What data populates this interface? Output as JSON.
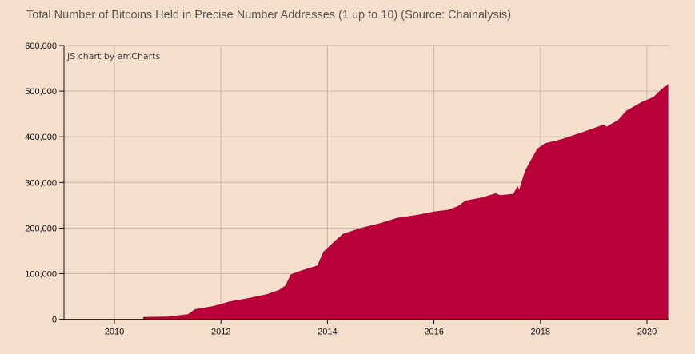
{
  "chart_data": {
    "type": "area",
    "title": "Total Number of Bitcoins Held in Precise Number Addresses (1 up to 10) (Source: Chainalysis)",
    "credit": "JS chart by amCharts",
    "xlabel": "",
    "ylabel": "",
    "xlim": [
      2009.0,
      2020.4
    ],
    "ylim": [
      0,
      600000
    ],
    "x_ticks": [
      "2010",
      "2012",
      "2014",
      "2016",
      "2018",
      "2020"
    ],
    "y_ticks": [
      "0",
      "100,000",
      "200,000",
      "300,000",
      "400,000",
      "500,000",
      "600,000"
    ],
    "grid": true,
    "legend": "none",
    "fill_color": "#b8003a",
    "background_color": "#f4dfcc",
    "points": [
      [
        2010.54,
        0
      ],
      [
        2010.54,
        5000
      ],
      [
        2011.0,
        6000
      ],
      [
        2011.38,
        11000
      ],
      [
        2011.51,
        22000
      ],
      [
        2011.86,
        29000
      ],
      [
        2012.16,
        39000
      ],
      [
        2012.5,
        46000
      ],
      [
        2012.86,
        55000
      ],
      [
        2013.1,
        65000
      ],
      [
        2013.21,
        74000
      ],
      [
        2013.31,
        98000
      ],
      [
        2013.46,
        105000
      ],
      [
        2013.81,
        118000
      ],
      [
        2013.92,
        148000
      ],
      [
        2014.16,
        174000
      ],
      [
        2014.29,
        187000
      ],
      [
        2014.62,
        200000
      ],
      [
        2015.0,
        211000
      ],
      [
        2015.3,
        222000
      ],
      [
        2015.7,
        229000
      ],
      [
        2016.0,
        236000
      ],
      [
        2016.26,
        240000
      ],
      [
        2016.45,
        248000
      ],
      [
        2016.59,
        260000
      ],
      [
        2016.9,
        267000
      ],
      [
        2017.16,
        276000
      ],
      [
        2017.24,
        272000
      ],
      [
        2017.49,
        275000
      ],
      [
        2017.57,
        292000
      ],
      [
        2017.6,
        284000
      ],
      [
        2017.71,
        326000
      ],
      [
        2017.94,
        374000
      ],
      [
        2018.09,
        386000
      ],
      [
        2018.4,
        395000
      ],
      [
        2018.76,
        409000
      ],
      [
        2019.19,
        427000
      ],
      [
        2019.24,
        422000
      ],
      [
        2019.46,
        437000
      ],
      [
        2019.61,
        457000
      ],
      [
        2019.9,
        476000
      ],
      [
        2020.12,
        487000
      ],
      [
        2020.27,
        504000
      ],
      [
        2020.4,
        516000
      ],
      [
        2020.4,
        0
      ]
    ]
  }
}
